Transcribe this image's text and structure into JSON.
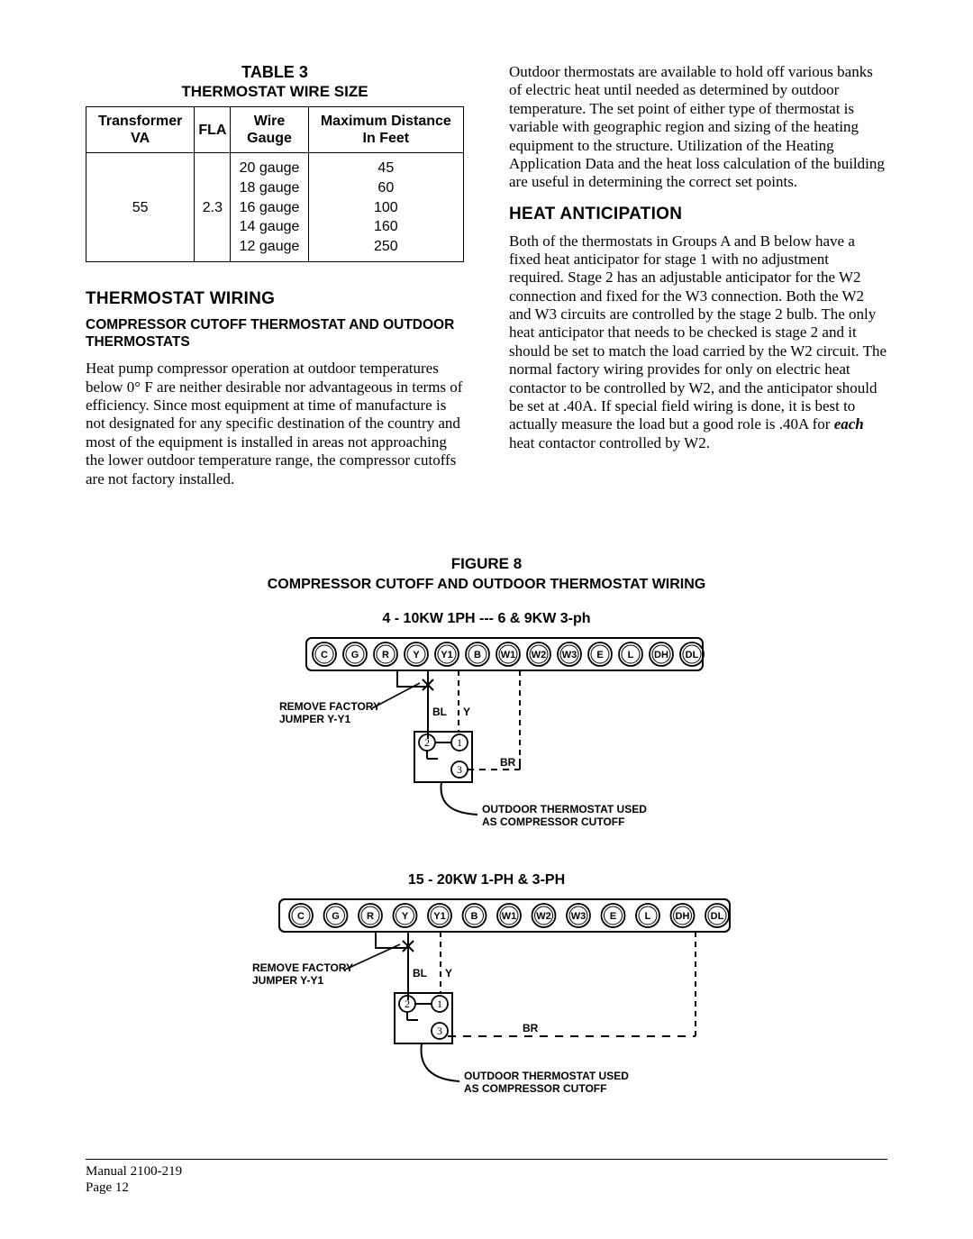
{
  "table": {
    "number": "TABLE 3",
    "title": "THERMOSTAT WIRE SIZE",
    "headers": [
      "Transformer VA",
      "FLA",
      "Wire Gauge",
      "Maximum Distance In Feet"
    ],
    "va": "55",
    "fla": "2.3",
    "gauges": [
      "20 gauge",
      "18 gauge",
      "16 gauge",
      "14 gauge",
      "12 gauge"
    ],
    "distances": [
      "45",
      "60",
      "100",
      "160",
      "250"
    ]
  },
  "left": {
    "h_wiring": "THERMOSTAT WIRING",
    "h_sub": "COMPRESSOR CUTOFF THERMOSTAT AND OUTDOOR THERMOSTATS",
    "p1": "Heat pump compressor operation at outdoor temperatures below 0° F are neither desirable nor advantageous in terms of efficiency. Since most equipment at time of manufacture is not designated for any specific destination of the country and most of the equipment is installed in areas not approaching the lower outdoor temperature range, the compressor cutoffs are not factory installed."
  },
  "right": {
    "p1": "Outdoor thermostats are available to hold off various banks of electric heat until needed as determined by outdoor temperature. The set point of either type of thermostat is variable with geographic region and sizing of the heating equipment to the structure. Utilization of the Heating Application Data and the heat loss calculation of the building are useful in determining the correct set points.",
    "h_heat": "HEAT ANTICIPATION",
    "p2a": "Both of the thermostats in Groups A and B below have a fixed heat anticipator for stage 1 with no adjustment required. Stage 2 has an adjustable anticipator for the W2 connection and fixed for the W3 connection. Both the W2 and W3 circuits are controlled by the stage 2 bulb. The only heat anticipator that needs to be checked is stage 2 and it should be set to match the load carried by the W2 circuit. The normal factory wiring provides for only on electric heat contactor to be controlled by W2, and the anticipator should be set at .40A. If special field wiring is done, it is best to actually measure the load but a good role is .40A for ",
    "p2b": "each",
    "p2c": " heat contactor controlled by W2."
  },
  "figure": {
    "number": "FIGURE 8",
    "title": "COMPRESSOR CUTOFF AND OUTDOOR THERMOSTAT WIRING",
    "d1_label": "4 - 10KW 1PH --- 6 & 9KW 3-ph",
    "d2_label": "15 - 20KW 1-PH & 3-PH",
    "terminals": [
      "C",
      "G",
      "R",
      "Y",
      "Y1",
      "B",
      "W1",
      "W2",
      "W3",
      "E",
      "L",
      "DH",
      "DL"
    ],
    "remove_label": "REMOVE FACTORY JUMPER Y-Y1",
    "cutoff_l1": "OUTDOOR THERMOSTAT USED",
    "cutoff_l2": "AS COMPRESSOR CUTOFF"
  },
  "footer": {
    "manual": "Manual   2100-219",
    "page": "Page   12"
  },
  "colors": {
    "text": "#000000",
    "bg": "#ffffff"
  }
}
